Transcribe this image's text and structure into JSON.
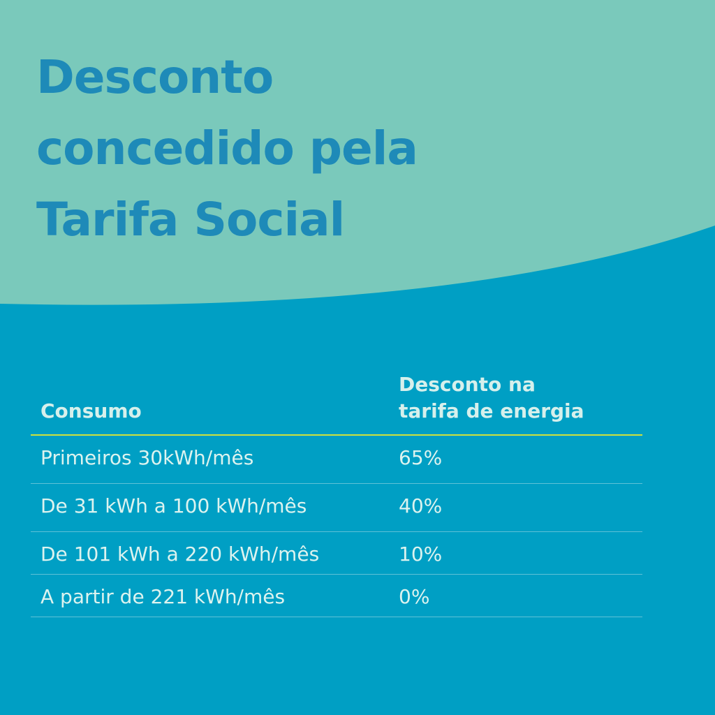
{
  "title": {
    "line1": "Desconto",
    "line2": "concedido pela",
    "line3": "Tarifa Social"
  },
  "table": {
    "header_consumo": "Consumo",
    "header_desconto_line1": "Desconto na",
    "header_desconto_line2": "tarifa de energia",
    "rows": [
      {
        "consumo": "Primeiros 30kWh/mês",
        "desconto": "65%"
      },
      {
        "consumo": "De 31 kWh a 100 kWh/mês",
        "desconto": "40%"
      },
      {
        "consumo": "De 101 kWh a 220 kWh/mês",
        "desconto": "10%"
      },
      {
        "consumo": "A partir de 221 kWh/mês",
        "desconto": "0%"
      }
    ]
  },
  "colors": {
    "top_band": "#7ac9bb",
    "background": "#009fc4",
    "title": "#1e8ab8",
    "header_rule": "#cfe23b",
    "text": "#dcf3ef"
  }
}
